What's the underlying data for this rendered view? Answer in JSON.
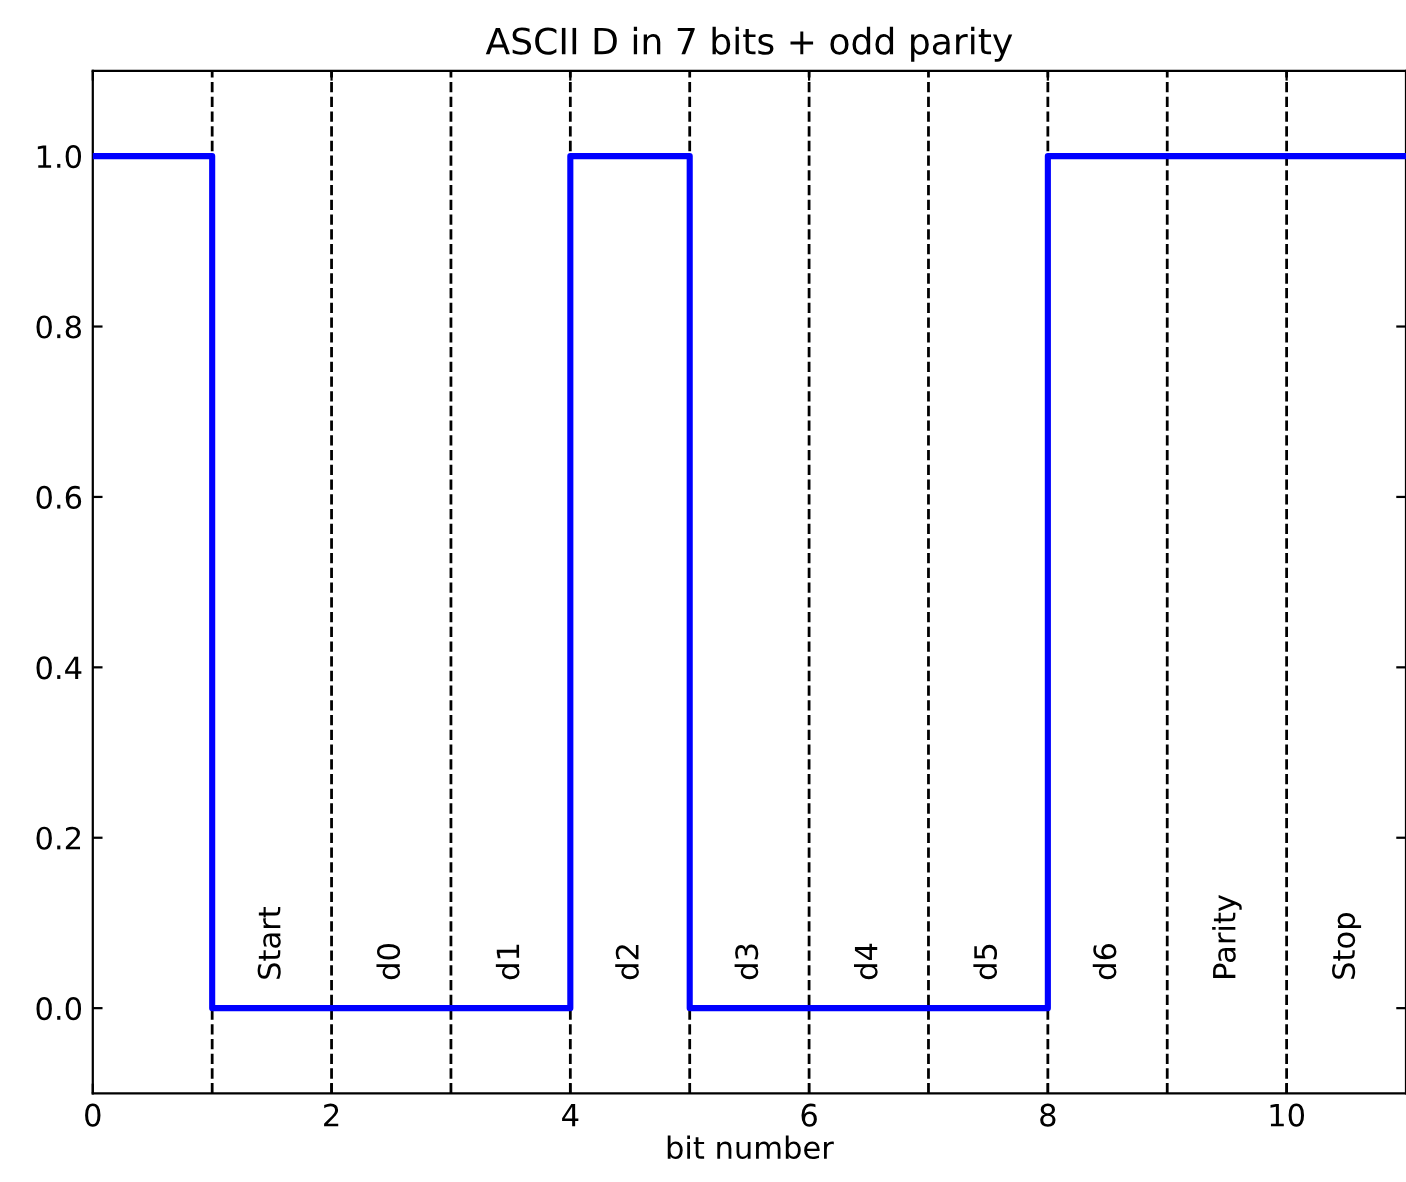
{
  "chart_data": {
    "type": "step",
    "title": "ASCII D in 7 bits + odd parity",
    "xlabel": "bit number",
    "x": [
      0,
      1,
      2,
      3,
      4,
      5,
      6,
      7,
      8,
      9,
      10,
      11
    ],
    "series": [
      {
        "color": "#0000ff",
        "values": [
          1,
          0,
          0,
          0,
          1,
          0,
          0,
          0,
          1,
          1,
          1,
          1
        ]
      }
    ],
    "xlim": [
      0,
      11
    ],
    "ylim": [
      -0.1,
      1.1
    ],
    "xticks": [
      0,
      2,
      4,
      6,
      8,
      10
    ],
    "yticks": [
      {
        "value": 0,
        "label": "0.0"
      },
      {
        "value": 0.2,
        "label": "0.2"
      },
      {
        "value": 0.4,
        "label": "0.4"
      },
      {
        "value": 0.6,
        "label": "0.6"
      },
      {
        "value": 0.8,
        "label": "0.8"
      },
      {
        "value": 1,
        "label": "1.0"
      }
    ],
    "ref_lines": [
      {
        "axis": "x",
        "value": 1,
        "line_style": "dashed",
        "color": "#000000"
      },
      {
        "axis": "x",
        "value": 2,
        "line_style": "dashed",
        "color": "#000000"
      },
      {
        "axis": "x",
        "value": 3,
        "line_style": "dashed",
        "color": "#000000"
      },
      {
        "axis": "x",
        "value": 4,
        "line_style": "dashed",
        "color": "#000000"
      },
      {
        "axis": "x",
        "value": 5,
        "line_style": "dashed",
        "color": "#000000"
      },
      {
        "axis": "x",
        "value": 6,
        "line_style": "dashed",
        "color": "#000000"
      },
      {
        "axis": "x",
        "value": 7,
        "line_style": "dashed",
        "color": "#000000"
      },
      {
        "axis": "x",
        "value": 8,
        "line_style": "dashed",
        "color": "#000000"
      },
      {
        "axis": "x",
        "value": 9,
        "line_style": "dashed",
        "color": "#000000"
      },
      {
        "axis": "x",
        "value": 10,
        "line_style": "dashed",
        "color": "#000000"
      }
    ],
    "annotations": [
      "Start",
      "d0",
      "d1",
      "d2",
      "d3",
      "d4",
      "d5",
      "d6",
      "Parity",
      "Stop"
    ],
    "grid": false,
    "legend": false
  }
}
